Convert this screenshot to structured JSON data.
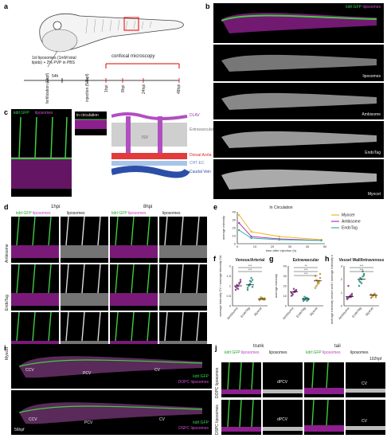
{
  "panel_letters": {
    "a": "a",
    "b": "b",
    "c": "c",
    "d": "d",
    "e": "e",
    "f": "f",
    "g": "g",
    "h": "h",
    "i": "i",
    "j": "j"
  },
  "panel_a": {
    "injection_note": "1nl liposomes (1mM total lipids) + 2% PVP in PBS",
    "confocal_label": "confocal microscopy",
    "time_54h": "54h",
    "timeline": [
      "fertilization (0hpf)",
      "injection (54hpf)",
      "1hpi",
      "8hpi",
      "24hpi",
      "48hpi"
    ]
  },
  "panel_b": {
    "legend_green": "kdrl:GFP",
    "legend_magenta": "liposomes",
    "rows": [
      "liposomes",
      "Ambisome",
      "EndoTag",
      "Myocet"
    ]
  },
  "panel_c": {
    "legend_green": "kdrl:GFP",
    "legend_magenta": "liposomes",
    "inset_label": "in circulation",
    "schematic": [
      "DLAV",
      "Extravascular",
      "ISV",
      "Dorsal Aorta",
      "CHT-EC",
      "Caudal Vein"
    ]
  },
  "panel_d": {
    "time_1": "1hpi",
    "time_2": "8hpi",
    "col_merge": "kdrl:GFP liposomes",
    "col_green": "kdrl:GFP",
    "col_magenta": "liposomes",
    "col_lipo": "liposomes",
    "rows": [
      "Ambisome",
      "EndoTag",
      "Myocet"
    ]
  },
  "chart_data": [
    {
      "id": "e",
      "type": "line",
      "title": "In Circulation",
      "xlabel": "time after injection (h)",
      "ylabel": "average intensity",
      "xlim": [
        0,
        50
      ],
      "ylim": [
        0,
        40
      ],
      "xticks": [
        0,
        10,
        20,
        30,
        40,
        50
      ],
      "yticks": [
        0,
        10,
        20,
        30,
        40
      ],
      "x": [
        1,
        8,
        24,
        48
      ],
      "legend_position": "top-right",
      "series": [
        {
          "name": "Myocet",
          "color": "#f0b429",
          "values": [
            36,
            15,
            9,
            5
          ]
        },
        {
          "name": "Ambisome",
          "color": "#b03ab0",
          "values": [
            26,
            9,
            6,
            4
          ]
        },
        {
          "name": "EndoTag",
          "color": "#2bb3a3",
          "values": [
            17,
            7,
            5,
            4
          ]
        }
      ]
    },
    {
      "id": "f",
      "type": "scatter",
      "title": "Venous/Arterial",
      "ylabel": "average intensity CV / average intensity DA",
      "categories": [
        "Ambisome",
        "EndoTag",
        "Myocet"
      ],
      "colors": [
        "#b03ab0",
        "#2bb3a3",
        "#f0b429"
      ],
      "ylim": [
        0,
        2
      ],
      "yticks": [
        0,
        0.5,
        1,
        1.5,
        2
      ],
      "means": [
        1.0,
        1.05,
        0.35
      ],
      "points": [
        [
          0.8,
          0.9,
          1.0,
          1.1,
          1.2,
          0.95,
          1.05,
          0.85,
          1.15,
          1.3
        ],
        [
          0.8,
          1.0,
          1.1,
          1.2,
          1.3,
          0.9,
          1.05,
          1.25,
          1.4,
          0.95
        ],
        [
          0.3,
          0.35,
          0.4,
          0.32,
          0.38,
          0.28,
          0.42,
          0.36,
          0.34,
          0.3
        ]
      ],
      "annotations": [
        "***",
        "***"
      ]
    },
    {
      "id": "g",
      "type": "scatter",
      "title": "Extravascular",
      "ylabel": "average intensity",
      "categories": [
        "Ambisome",
        "EndoTag",
        "Myocet"
      ],
      "colors": [
        "#b03ab0",
        "#2bb3a3",
        "#f0b429"
      ],
      "ylim": [
        0,
        40
      ],
      "yticks": [
        0,
        10,
        20,
        30,
        40
      ],
      "means": [
        14,
        7,
        25
      ],
      "points": [
        [
          10,
          12,
          14,
          15,
          16,
          13,
          11,
          17,
          14,
          15
        ],
        [
          5,
          6,
          7,
          8,
          6,
          7,
          9,
          8,
          5,
          7
        ],
        [
          18,
          20,
          22,
          25,
          28,
          30,
          26,
          24,
          23,
          32
        ]
      ],
      "annotations": [
        "**",
        "***",
        "***"
      ]
    },
    {
      "id": "h",
      "type": "scatter",
      "title": "Vessel Wall/Intravenous",
      "ylabel": "average intensity vessel wall / average intensity lumen",
      "categories": [
        "Ambisome",
        "EndoTag",
        "Myocet"
      ],
      "colors": [
        "#b03ab0",
        "#2bb3a3",
        "#f0b429"
      ],
      "ylim": [
        0,
        3
      ],
      "yticks": [
        0,
        1,
        2,
        3
      ],
      "means": [
        0.7,
        2.0,
        0.8
      ],
      "points": [
        [
          0.5,
          0.6,
          0.7,
          0.8,
          0.9,
          0.6,
          1.5,
          0.7,
          0.65,
          0.75
        ],
        [
          1.5,
          1.8,
          2.0,
          2.2,
          2.4,
          1.9,
          2.1,
          1.7,
          2.6,
          2.3
        ],
        [
          0.6,
          0.7,
          0.8,
          0.9,
          0.75,
          0.85,
          0.7,
          0.8,
          0.9,
          0.65
        ]
      ],
      "annotations": [
        "***",
        "***"
      ]
    }
  ],
  "panel_i": {
    "top_labels": [
      "CCV",
      "PCV",
      "CV"
    ],
    "top_legend": [
      "kdrl:GFP",
      "DOPC liposomes"
    ],
    "bottom_labels": [
      "CCV",
      "PCV",
      "CV"
    ],
    "bottom_legend": [
      "kdrl:GFP",
      "DSPC liposomes"
    ],
    "stage": "56hpf"
  },
  "panel_j": {
    "trunk": "trunk",
    "tail": "tail",
    "stage": "102hpf",
    "col_merge": "kdrl:GFP liposomes",
    "col_green": "kdrl:GFP",
    "col_magenta": "liposomes",
    "col_lipo": "liposomes",
    "rows": [
      "DOPC liposomes",
      "DSPC liposomes"
    ],
    "labels": [
      "dPCV",
      "CV",
      "dPCV",
      "CV"
    ]
  }
}
